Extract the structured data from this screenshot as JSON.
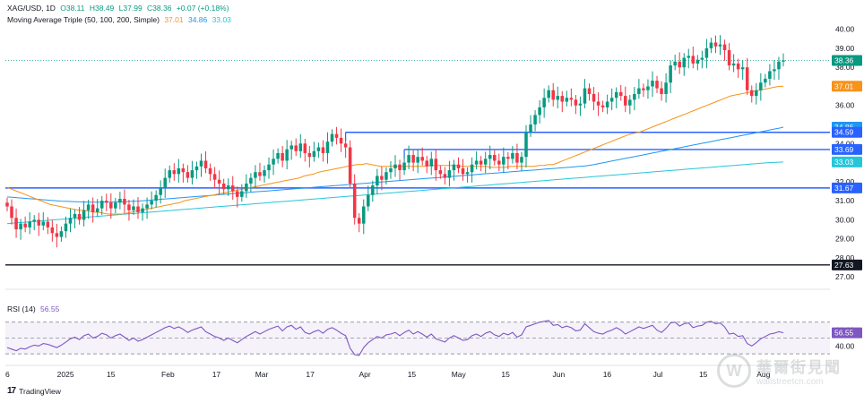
{
  "header": {
    "symbol": "XAG/USD, 1D",
    "open": "O38.11",
    "high": "H38.49",
    "low": "L37.99",
    "close": "C38.36",
    "change": "+0.07 (+0.18%)",
    "ma_label": "Moving Average Triple (50, 100, 200, Simple)",
    "ma50": "37.01",
    "ma100": "34.86",
    "ma200": "33.03",
    "rsi_label": "RSI (14)",
    "rsi_value": "56.55"
  },
  "footer": {
    "brand": "TradingView",
    "logo": "17"
  },
  "watermark": {
    "cn": "華爾街見聞",
    "en": "wallstreetcn.com"
  },
  "colors": {
    "up": "#089981",
    "down": "#f23645",
    "ma50": "#f7931a",
    "ma100": "#2196f3",
    "ma200": "#26c6da",
    "level": "#2962ff",
    "rsi": "#7e57c2",
    "price_line": "#089981"
  },
  "chart_data": {
    "type": "candlestick",
    "y_axis": {
      "ticks": [
        "40.00",
        "39.00",
        "38.00",
        "37.00",
        "36.00",
        "35.00",
        "34.00",
        "33.00",
        "32.00",
        "31.00",
        "30.00",
        "29.00",
        "28.00",
        "27.00"
      ],
      "ylim": [
        26.4,
        40.5
      ]
    },
    "x_axis": {
      "ticks": [
        "6",
        "2025",
        "15",
        "Feb",
        "17",
        "Mar",
        "17",
        "Apr",
        "15",
        "May",
        "15",
        "Jun",
        "16",
        "Jul",
        "15",
        "Aug"
      ]
    },
    "rsi_axis": {
      "ticks": [
        "60.00",
        "40.00"
      ]
    },
    "price_badges": [
      {
        "value": "38.36",
        "color": "#089981",
        "price": 38.36
      },
      {
        "value": "37.01",
        "color": "#f7931a",
        "price": 37.01
      },
      {
        "value": "34.86",
        "color": "#2196f3",
        "price": 34.86
      },
      {
        "value": "34.59",
        "color": "#2962ff",
        "price": 34.59
      },
      {
        "value": "33.69",
        "color": "#2962ff",
        "price": 33.69
      },
      {
        "value": "33.03",
        "color": "#26c6da",
        "price": 33.03
      },
      {
        "value": "31.67",
        "color": "#2962ff",
        "price": 31.67
      },
      {
        "value": "27.63",
        "color": "#131722",
        "price": 27.63
      }
    ],
    "closes": [
      30.7,
      30.1,
      29.5,
      29.8,
      29.6,
      29.9,
      30.0,
      29.7,
      29.9,
      29.6,
      29.3,
      29.1,
      29.4,
      29.8,
      30.1,
      30.3,
      30.0,
      30.5,
      30.8,
      30.4,
      30.6,
      31.0,
      30.9,
      30.6,
      30.9,
      31.1,
      30.8,
      30.5,
      30.7,
      30.4,
      30.6,
      30.8,
      31.0,
      31.3,
      31.7,
      32.2,
      32.6,
      32.4,
      32.7,
      32.5,
      32.2,
      32.6,
      32.8,
      33.1,
      32.7,
      32.4,
      32.1,
      31.9,
      31.6,
      31.8,
      31.5,
      31.2,
      31.5,
      31.9,
      32.2,
      32.5,
      32.3,
      32.6,
      32.9,
      33.2,
      33.5,
      33.1,
      33.7,
      33.9,
      33.6,
      34.0,
      33.5,
      33.3,
      33.6,
      33.8,
      33.5,
      34.1,
      34.5,
      34.3,
      34.0,
      33.8,
      31.9,
      30.1,
      29.8,
      30.7,
      31.3,
      31.8,
      32.3,
      32.1,
      32.5,
      32.7,
      32.9,
      32.6,
      33.0,
      33.4,
      33.0,
      33.3,
      33.1,
      32.8,
      33.2,
      32.6,
      32.4,
      32.2,
      32.6,
      32.9,
      32.7,
      32.4,
      32.5,
      32.9,
      33.1,
      32.9,
      33.2,
      33.4,
      33.1,
      32.9,
      33.3,
      33.2,
      33.5,
      33.0,
      33.3,
      34.6,
      35.0,
      35.5,
      35.9,
      36.4,
      36.8,
      36.3,
      36.5,
      36.2,
      36.4,
      36.3,
      36.0,
      36.1,
      36.9,
      36.6,
      36.2,
      36.0,
      35.9,
      36.2,
      36.4,
      36.7,
      36.5,
      36.0,
      36.3,
      36.6,
      36.9,
      36.8,
      37.0,
      37.3,
      36.9,
      36.6,
      37.2,
      38.1,
      38.3,
      38.0,
      38.5,
      38.6,
      38.2,
      38.4,
      38.5,
      39.0,
      39.3,
      39.1,
      39.2,
      38.9,
      38.1,
      38.2,
      37.9,
      38.0,
      36.8,
      36.5,
      36.8,
      37.2,
      37.4,
      37.8,
      37.9,
      38.3,
      38.36
    ],
    "ma50": {
      "from": 0,
      "values": [
        31.7,
        31.6,
        31.5,
        31.4,
        31.3,
        31.2,
        31.1,
        31.0,
        30.9,
        30.8,
        30.75,
        30.7,
        30.65,
        30.6,
        30.55,
        30.5,
        30.5,
        30.45,
        30.4,
        30.4,
        30.35,
        30.3,
        30.3,
        30.3,
        30.3,
        30.35,
        30.4,
        30.45,
        30.5,
        30.55,
        30.6,
        30.65,
        30.7,
        30.75,
        30.8,
        30.85,
        30.9,
        31.0,
        31.05,
        31.1,
        31.15,
        31.2,
        31.25,
        31.3,
        31.35,
        31.4,
        31.45,
        31.5,
        31.55,
        31.6,
        31.65,
        31.7,
        31.75,
        31.8,
        31.85,
        31.9,
        31.95,
        32.0,
        32.05,
        32.1,
        32.15,
        32.2,
        32.3,
        32.35,
        32.4,
        32.5,
        32.55,
        32.6,
        32.65,
        32.7,
        32.75,
        32.8,
        32.85,
        32.9,
        32.9,
        32.95,
        32.9,
        32.85,
        32.8,
        32.8,
        32.8,
        32.8,
        32.8,
        32.8,
        32.8,
        32.8,
        32.8,
        32.8,
        32.85,
        32.85,
        32.85,
        32.85,
        32.85,
        32.85,
        32.85,
        32.8,
        32.8,
        32.8,
        32.8,
        32.8,
        32.8,
        32.75,
        32.75,
        32.75,
        32.75,
        32.8,
        32.8,
        32.8,
        32.8,
        32.8,
        32.8,
        32.85,
        32.85,
        32.9,
        32.9,
        33.0,
        33.1,
        33.2,
        33.3,
        33.4,
        33.5,
        33.6,
        33.7,
        33.8,
        33.9,
        34.0,
        34.1,
        34.2,
        34.3,
        34.4,
        34.5,
        34.55,
        34.6,
        34.7,
        34.8,
        34.9,
        35.0,
        35.1,
        35.2,
        35.3,
        35.4,
        35.5,
        35.6,
        35.7,
        35.8,
        35.9,
        36.0,
        36.1,
        36.2,
        36.3,
        36.4,
        36.5,
        36.55,
        36.6,
        36.65,
        36.7,
        36.75,
        36.8,
        36.85,
        36.9,
        36.95,
        37.0,
        37.01
      ]
    },
    "ma100": {
      "from": 0,
      "values": [
        31.2,
        31.18,
        31.16,
        31.14,
        31.12,
        31.1,
        31.08,
        31.06,
        31.04,
        31.02,
        31.0,
        30.98,
        30.97,
        30.96,
        30.95,
        30.94,
        30.93,
        30.92,
        30.92,
        30.92,
        30.92,
        30.92,
        30.93,
        30.94,
        30.95,
        30.96,
        30.97,
        30.98,
        31.0,
        31.02,
        31.04,
        31.06,
        31.08,
        31.1,
        31.12,
        31.14,
        31.16,
        31.18,
        31.2,
        31.22,
        31.24,
        31.26,
        31.28,
        31.3,
        31.32,
        31.34,
        31.36,
        31.38,
        31.4,
        31.42,
        31.44,
        31.46,
        31.48,
        31.5,
        31.52,
        31.54,
        31.56,
        31.58,
        31.6,
        31.62,
        31.64,
        31.66,
        31.68,
        31.7,
        31.72,
        31.74,
        31.76,
        31.78,
        31.8,
        31.82,
        31.84,
        31.86,
        31.88,
        31.9,
        31.92,
        31.94,
        31.96,
        31.98,
        32.0,
        32.02,
        32.04,
        32.06,
        32.08,
        32.1,
        32.12,
        32.14,
        32.16,
        32.18,
        32.2,
        32.22,
        32.24,
        32.26,
        32.28,
        32.3,
        32.32,
        32.34,
        32.36,
        32.38,
        32.4,
        32.42,
        32.44,
        32.46,
        32.48,
        32.5,
        32.52,
        32.54,
        32.56,
        32.58,
        32.6,
        32.62,
        32.64,
        32.66,
        32.68,
        32.7,
        32.72,
        32.74,
        32.76,
        32.78,
        32.8,
        32.82,
        32.86,
        32.9,
        32.95,
        33.0,
        33.05,
        33.1,
        33.15,
        33.2,
        33.25,
        33.3,
        33.35,
        33.4,
        33.45,
        33.5,
        33.55,
        33.6,
        33.65,
        33.7,
        33.75,
        33.8,
        33.85,
        33.9,
        33.95,
        34.0,
        34.05,
        34.1,
        34.15,
        34.2,
        34.25,
        34.3,
        34.35,
        34.4,
        34.45,
        34.5,
        34.55,
        34.6,
        34.65,
        34.7,
        34.75,
        34.8,
        34.86
      ]
    },
    "ma200": {
      "from": 0,
      "values": [
        29.8,
        29.82,
        29.84,
        29.86,
        29.88,
        29.9,
        29.92,
        29.94,
        29.96,
        29.98,
        30.0,
        30.02,
        30.04,
        30.06,
        30.08,
        30.1,
        30.12,
        30.14,
        30.16,
        30.18,
        30.2,
        30.22,
        30.24,
        30.26,
        30.28,
        30.3,
        30.32,
        30.34,
        30.36,
        30.38,
        30.4,
        30.42,
        30.44,
        30.46,
        30.48,
        30.5,
        30.52,
        30.54,
        30.56,
        30.58,
        30.6,
        30.62,
        30.64,
        30.66,
        30.68,
        30.7,
        30.72,
        30.74,
        30.76,
        30.78,
        30.8,
        30.82,
        30.84,
        30.86,
        30.88,
        30.9,
        30.92,
        30.94,
        30.96,
        30.98,
        31.0,
        31.02,
        31.04,
        31.06,
        31.08,
        31.1,
        31.12,
        31.14,
        31.16,
        31.18,
        31.2,
        31.22,
        31.24,
        31.26,
        31.28,
        31.3,
        31.32,
        31.34,
        31.36,
        31.38,
        31.4,
        31.42,
        31.44,
        31.46,
        31.48,
        31.5,
        31.52,
        31.54,
        31.56,
        31.58,
        31.6,
        31.62,
        31.64,
        31.66,
        31.68,
        31.7,
        31.72,
        31.74,
        31.76,
        31.78,
        31.8,
        31.82,
        31.84,
        31.86,
        31.88,
        31.9,
        31.92,
        31.94,
        31.96,
        31.98,
        32.0,
        32.02,
        32.04,
        32.06,
        32.08,
        32.1,
        32.12,
        32.14,
        32.16,
        32.18,
        32.2,
        32.22,
        32.24,
        32.26,
        32.28,
        32.3,
        32.32,
        32.34,
        32.36,
        32.38,
        32.4,
        32.42,
        32.44,
        32.46,
        32.48,
        32.5,
        32.52,
        32.54,
        32.56,
        32.58,
        32.6,
        32.62,
        32.64,
        32.66,
        32.68,
        32.7,
        32.72,
        32.74,
        32.76,
        32.78,
        32.8,
        32.82,
        32.84,
        32.86,
        32.88,
        32.9,
        32.92,
        32.94,
        32.96,
        32.98,
        33.0,
        33.01,
        33.02,
        33.03
      ]
    },
    "rsi": [
      38,
      36,
      34,
      37,
      36,
      39,
      41,
      40,
      43,
      42,
      40,
      38,
      41,
      45,
      49,
      51,
      48,
      53,
      55,
      50,
      52,
      56,
      54,
      50,
      53,
      55,
      51,
      47,
      50,
      46,
      48,
      51,
      54,
      57,
      60,
      63,
      65,
      62,
      64,
      61,
      57,
      60,
      62,
      64,
      58,
      55,
      52,
      50,
      47,
      50,
      47,
      44,
      48,
      52,
      55,
      58,
      55,
      58,
      61,
      63,
      65,
      59,
      64,
      66,
      61,
      64,
      57,
      55,
      58,
      60,
      56,
      61,
      63,
      60,
      56,
      53,
      37,
      29,
      28,
      38,
      44,
      48,
      52,
      50,
      54,
      55,
      57,
      53,
      57,
      60,
      55,
      58,
      55,
      51,
      55,
      49,
      47,
      45,
      50,
      53,
      50,
      47,
      48,
      53,
      55,
      52,
      56,
      58,
      54,
      52,
      56,
      54,
      57,
      51,
      54,
      64,
      66,
      68,
      70,
      71,
      72,
      66,
      67,
      63,
      65,
      63,
      59,
      60,
      68,
      63,
      58,
      56,
      55,
      58,
      60,
      63,
      60,
      55,
      58,
      61,
      64,
      62,
      64,
      66,
      60,
      57,
      62,
      69,
      70,
      65,
      68,
      69,
      63,
      65,
      66,
      70,
      71,
      68,
      69,
      64,
      55,
      56,
      52,
      53,
      43,
      40,
      44,
      49,
      52,
      55,
      56,
      58,
      56.55
    ],
    "levels": [
      {
        "price": 34.59,
        "from_index": 75
      },
      {
        "price": 33.69,
        "from_index": 88
      },
      {
        "price": 31.67,
        "from_index": 0
      },
      {
        "price": 27.63,
        "from_index": 0
      }
    ]
  }
}
